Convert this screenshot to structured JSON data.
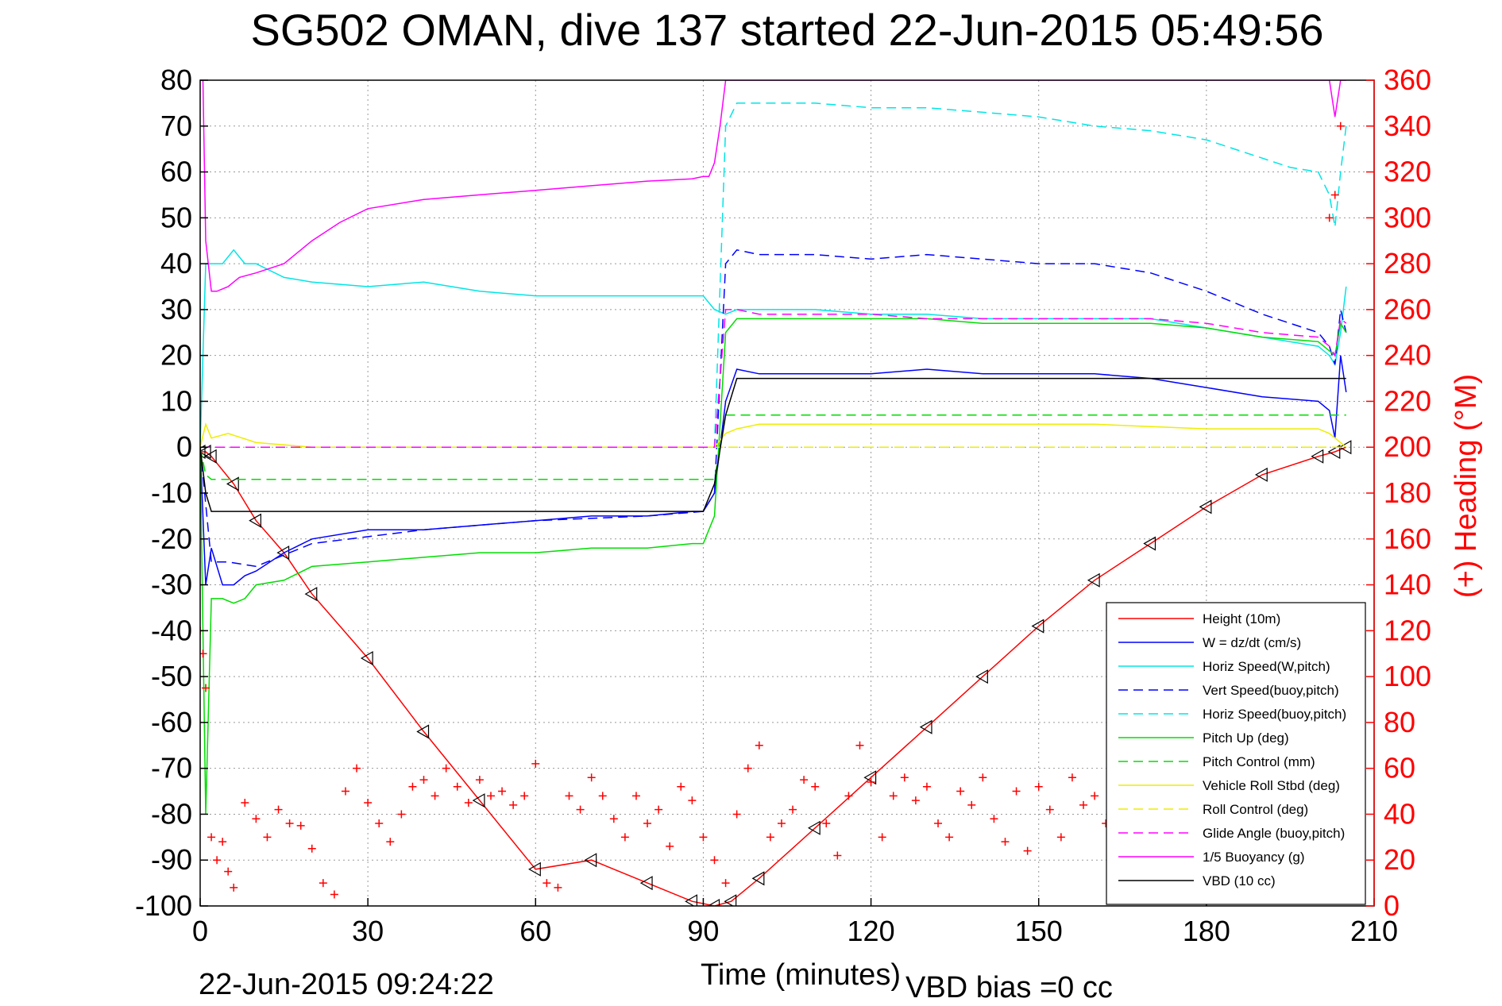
{
  "chart_data": {
    "type": "line",
    "title": "SG502 OMAN, dive 137 started 22-Jun-2015 05:49:56",
    "xlabel": "Time (minutes)",
    "ylabel_right": "(+) Heading (°M)",
    "footer_left": "22-Jun-2015 09:24:22",
    "footer_right": "VBD bias =0 cc",
    "xlim": [
      0,
      210
    ],
    "ylim": [
      -100,
      80
    ],
    "ylim_right": [
      0,
      360
    ],
    "x_ticks": [
      0,
      30,
      60,
      90,
      120,
      150,
      180,
      210
    ],
    "y_ticks": [
      -100,
      -90,
      -80,
      -70,
      -60,
      -50,
      -40,
      -30,
      -20,
      -10,
      0,
      10,
      20,
      30,
      40,
      50,
      60,
      70,
      80
    ],
    "y_ticks_right": [
      0,
      20,
      40,
      60,
      80,
      100,
      120,
      140,
      160,
      180,
      200,
      220,
      240,
      260,
      280,
      300,
      320,
      340,
      360
    ],
    "grid": true,
    "legend_position": "bottom-right",
    "colors": {
      "axis": "#000000",
      "right_axis": "#ff0000",
      "grid": "#999999"
    },
    "series": [
      {
        "name": "Height (10m)",
        "color": "#ff0000",
        "style": "solid",
        "axis": "left",
        "x": [
          0,
          1,
          2,
          6,
          10,
          15,
          20,
          30,
          40,
          50,
          60,
          70,
          80,
          88,
          92,
          95,
          100,
          110,
          120,
          130,
          140,
          150,
          160,
          170,
          180,
          190,
          200,
          203,
          205
        ],
        "y": [
          -1,
          -1,
          -2,
          -8,
          -16,
          -23,
          -32,
          -46,
          -62,
          -77,
          -92,
          -90,
          -95,
          -99,
          -100,
          -99,
          -94,
          -83,
          -72,
          -61,
          -50,
          -39,
          -29,
          -21,
          -13,
          -6,
          -2,
          -1,
          0
        ]
      },
      {
        "name": "W = dz/dt (cm/s)",
        "color": "#0000ff",
        "style": "solid",
        "axis": "left",
        "x": [
          0,
          1,
          2,
          4,
          6,
          8,
          10,
          15,
          20,
          30,
          40,
          50,
          60,
          70,
          80,
          88,
          90,
          92,
          94,
          96,
          100,
          110,
          120,
          130,
          140,
          150,
          160,
          170,
          180,
          190,
          200,
          202,
          203,
          204,
          205
        ],
        "y": [
          0,
          -30,
          -22,
          -30,
          -30,
          -28,
          -27,
          -23,
          -20,
          -18,
          -18,
          -17,
          -16,
          -15,
          -15,
          -14,
          -14,
          -10,
          10,
          17,
          16,
          16,
          16,
          17,
          16,
          16,
          16,
          15,
          13,
          11,
          10,
          8,
          2,
          20,
          12
        ]
      },
      {
        "name": "Horiz Speed(W,pitch)",
        "color": "#00e5e5",
        "style": "solid",
        "axis": "left",
        "x": [
          0,
          1,
          2,
          4,
          6,
          8,
          10,
          15,
          20,
          30,
          40,
          50,
          60,
          70,
          80,
          88,
          90,
          92,
          94,
          96,
          100,
          110,
          120,
          130,
          140,
          150,
          160,
          170,
          180,
          190,
          200,
          202,
          203,
          204,
          205
        ],
        "y": [
          0,
          40,
          40,
          40,
          43,
          40,
          40,
          37,
          36,
          35,
          36,
          34,
          33,
          33,
          33,
          33,
          33,
          30,
          29,
          30,
          30,
          30,
          29,
          29,
          28,
          28,
          28,
          28,
          26,
          24,
          22,
          20,
          18,
          25,
          35
        ]
      },
      {
        "name": "Vert Speed(buoy,pitch)",
        "color": "#0000ff",
        "style": "dashed",
        "axis": "left",
        "x": [
          0,
          2,
          5,
          10,
          20,
          40,
          60,
          80,
          90,
          92,
          94,
          96,
          100,
          110,
          120,
          130,
          140,
          150,
          160,
          170,
          180,
          190,
          200,
          202,
          203,
          204,
          205
        ],
        "y": [
          0,
          -25,
          -25,
          -26,
          -21,
          -18,
          -16,
          -15,
          -14,
          -10,
          40,
          43,
          42,
          42,
          41,
          42,
          41,
          40,
          40,
          38,
          34,
          29,
          25,
          22,
          18,
          30,
          25
        ]
      },
      {
        "name": "Horiz Speed(buoy,pitch)",
        "color": "#00e5e5",
        "style": "dashed",
        "axis": "left",
        "x": [
          0,
          2,
          10,
          40,
          80,
          90,
          92,
          94,
          96,
          100,
          110,
          120,
          130,
          140,
          150,
          160,
          170,
          180,
          190,
          195,
          200,
          202,
          203,
          204,
          205
        ],
        "y": [
          0,
          0,
          0,
          0,
          0,
          0,
          0,
          70,
          75,
          75,
          75,
          74,
          74,
          73,
          72,
          70,
          69,
          67,
          63,
          61,
          60,
          55,
          48,
          60,
          70
        ]
      },
      {
        "name": "Pitch Up (deg)",
        "color": "#00dd00",
        "style": "solid",
        "axis": "left",
        "x": [
          0,
          1,
          2,
          4,
          6,
          8,
          10,
          15,
          20,
          30,
          40,
          50,
          60,
          70,
          80,
          88,
          90,
          92,
          94,
          96,
          100,
          110,
          120,
          130,
          140,
          150,
          160,
          170,
          180,
          190,
          200,
          202,
          203,
          204,
          205
        ],
        "y": [
          0,
          -80,
          -33,
          -33,
          -34,
          -33,
          -30,
          -29,
          -26,
          -25,
          -24,
          -23,
          -23,
          -22,
          -22,
          -21,
          -21,
          -15,
          25,
          28,
          28,
          28,
          28,
          28,
          27,
          27,
          27,
          27,
          26,
          24,
          23,
          21,
          20,
          27,
          25
        ]
      },
      {
        "name": "Pitch Control (mm)",
        "color": "#00dd00",
        "style": "dashed",
        "axis": "left",
        "x": [
          0,
          1,
          2,
          10,
          40,
          80,
          90,
          92,
          94,
          100,
          140,
          180,
          202,
          203,
          205
        ],
        "y": [
          0,
          -6,
          -7,
          -7,
          -7,
          -7,
          -7,
          -7,
          7,
          7,
          7,
          7,
          7,
          7,
          7
        ]
      },
      {
        "name": "Vehicle Roll Stbd (deg)",
        "color": "#eeee00",
        "style": "solid",
        "axis": "left",
        "x": [
          0,
          1,
          2,
          5,
          10,
          20,
          30,
          40,
          50,
          60,
          70,
          80,
          90,
          92,
          94,
          96,
          100,
          120,
          140,
          160,
          180,
          200,
          202,
          203,
          205
        ],
        "y": [
          0,
          5,
          2,
          3,
          1,
          0,
          0,
          0,
          0,
          0,
          0,
          0,
          0,
          0,
          3,
          4,
          5,
          5,
          5,
          5,
          4,
          4,
          3,
          2,
          0
        ]
      },
      {
        "name": "Roll Control (deg)",
        "color": "#eeee00",
        "style": "dashed",
        "axis": "left",
        "x": [
          0,
          2,
          10,
          40,
          80,
          90,
          92,
          94,
          100,
          140,
          180,
          200,
          205
        ],
        "y": [
          0,
          0,
          0,
          0,
          0,
          0,
          0,
          0,
          0,
          0,
          0,
          0,
          0
        ]
      },
      {
        "name": "Glide Angle (buoy,pitch)",
        "color": "#ff00ff",
        "style": "dashed",
        "axis": "left",
        "x": [
          0,
          1,
          2,
          10,
          40,
          80,
          90,
          92,
          94,
          96,
          100,
          110,
          120,
          130,
          140,
          150,
          160,
          170,
          180,
          190,
          200,
          202,
          203,
          204,
          205
        ],
        "y": [
          0,
          0,
          0,
          0,
          0,
          0,
          0,
          0,
          30,
          30,
          29,
          29,
          29,
          28,
          28,
          28,
          28,
          28,
          27,
          25,
          24,
          22,
          20,
          28,
          27
        ]
      },
      {
        "name": "1/5 Buoyancy (g)",
        "color": "#ff00ff",
        "style": "solid",
        "axis": "left",
        "x": [
          0,
          0.5,
          1,
          2,
          3,
          5,
          7,
          10,
          15,
          20,
          25,
          30,
          40,
          50,
          60,
          70,
          80,
          88,
          90,
          91,
          92,
          93,
          94,
          96,
          200,
          202,
          203,
          204,
          205
        ],
        "y": [
          80,
          80,
          45,
          34,
          34,
          35,
          37,
          38,
          40,
          45,
          49,
          52,
          54,
          55,
          56,
          57,
          58,
          58.5,
          59,
          59,
          62,
          70,
          80,
          80,
          80,
          80,
          72,
          80,
          80
        ]
      },
      {
        "name": "VBD (10 cc)",
        "color": "#000000",
        "style": "solid",
        "axis": "left",
        "x": [
          0,
          1,
          2,
          5,
          10,
          20,
          40,
          60,
          80,
          90,
          92,
          94,
          96,
          100,
          120,
          140,
          160,
          180,
          200,
          202,
          203,
          204,
          205
        ],
        "y": [
          0,
          -10,
          -14,
          -14,
          -14,
          -14,
          -14,
          -14,
          -14,
          -14,
          -8,
          7,
          15,
          15,
          15,
          15,
          15,
          15,
          15,
          15,
          15,
          15,
          15
        ]
      },
      {
        "name": "Heading",
        "color": "#ff0000",
        "style": "markers",
        "axis": "right",
        "x": [
          0,
          0.5,
          1,
          2,
          3,
          4,
          5,
          6,
          8,
          10,
          12,
          14,
          16,
          18,
          20,
          22,
          24,
          26,
          28,
          30,
          32,
          34,
          36,
          38,
          40,
          42,
          44,
          46,
          48,
          50,
          52,
          54,
          56,
          58,
          60,
          62,
          64,
          66,
          68,
          70,
          72,
          74,
          76,
          78,
          80,
          82,
          84,
          86,
          88,
          90,
          92,
          94,
          96,
          98,
          100,
          102,
          104,
          106,
          108,
          110,
          112,
          114,
          116,
          118,
          120,
          122,
          124,
          126,
          128,
          130,
          132,
          134,
          136,
          138,
          140,
          142,
          144,
          146,
          148,
          150,
          152,
          154,
          156,
          158,
          160,
          162,
          164,
          166,
          168,
          170,
          172,
          174,
          176,
          178,
          180,
          182,
          184,
          186,
          188,
          190,
          192,
          194,
          196,
          198,
          200,
          202,
          203,
          204
        ],
        "y": [
          120,
          110,
          95,
          30,
          20,
          28,
          15,
          8,
          45,
          38,
          30,
          42,
          36,
          35,
          25,
          10,
          5,
          50,
          60,
          45,
          36,
          28,
          40,
          52,
          55,
          48,
          60,
          52,
          45,
          55,
          48,
          50,
          44,
          48,
          62,
          10,
          8,
          48,
          42,
          56,
          48,
          38,
          30,
          48,
          36,
          42,
          26,
          52,
          46,
          30,
          20,
          10,
          40,
          60,
          70,
          30,
          36,
          42,
          55,
          52,
          36,
          22,
          48,
          70,
          54,
          30,
          48,
          56,
          46,
          52,
          36,
          30,
          50,
          44,
          56,
          38,
          28,
          50,
          24,
          52,
          42,
          30,
          56,
          44,
          48,
          36,
          42,
          54,
          44,
          38,
          30,
          48,
          20,
          8,
          40,
          46,
          38,
          52,
          30,
          45,
          48,
          36,
          60,
          55,
          48,
          300,
          310,
          340
        ]
      }
    ]
  }
}
